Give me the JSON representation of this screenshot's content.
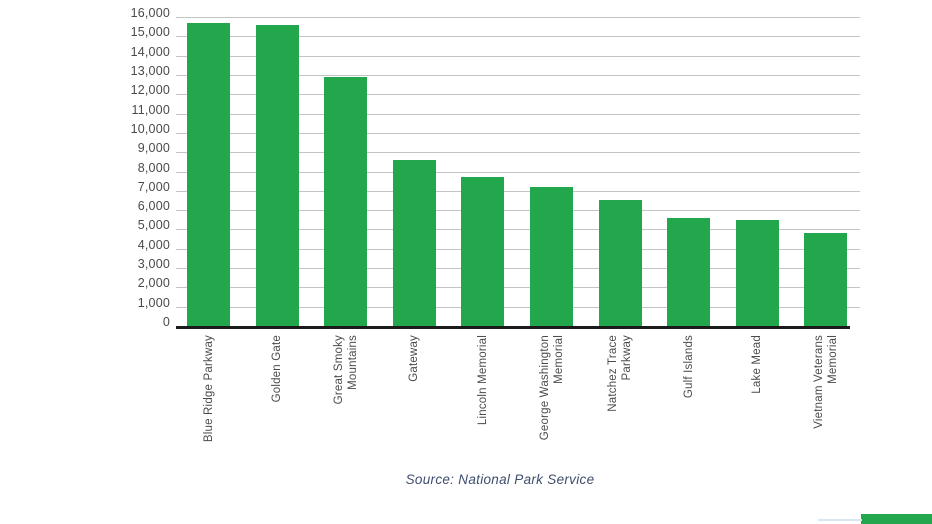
{
  "chart_data": {
    "type": "bar",
    "title": "",
    "xlabel": "",
    "ylabel": "",
    "categories": [
      "Blue Ridge Parkway",
      "Golden Gate",
      "Great Smoky\nMountains",
      "Gateway",
      "Lincoln Memorial",
      "George Washington\nMemorial",
      "Natchez Trace\nParkway",
      "Gulf Islands",
      "Lake Mead",
      "Vietnam Veterans\nMemorial"
    ],
    "values": [
      15700,
      15600,
      12900,
      8600,
      7700,
      7200,
      6500,
      5600,
      5500,
      4800
    ],
    "ylim": [
      0,
      16000
    ],
    "ytick_step": 1000,
    "ytick_labels": [
      "0",
      "1,000",
      "2,000",
      "3,000",
      "4,000",
      "5,000",
      "6,000",
      "7,000",
      "8,000",
      "9,000",
      "10,000",
      "11,000",
      "12,000",
      "13,000",
      "14,000",
      "15,000",
      "16,000"
    ],
    "grid": true,
    "legend": null,
    "bar_color": "#22a74d"
  },
  "source_note": "Source: National Park Service",
  "colors": {
    "bar": "#22a74d",
    "gridline": "#c4c4c4",
    "axis": "#1b1b1b",
    "tick_text": "#4a4a4c",
    "source_text": "#3e4d6e",
    "background": "#ffffff",
    "corner_artifact_blue": "#d9e7f5"
  }
}
